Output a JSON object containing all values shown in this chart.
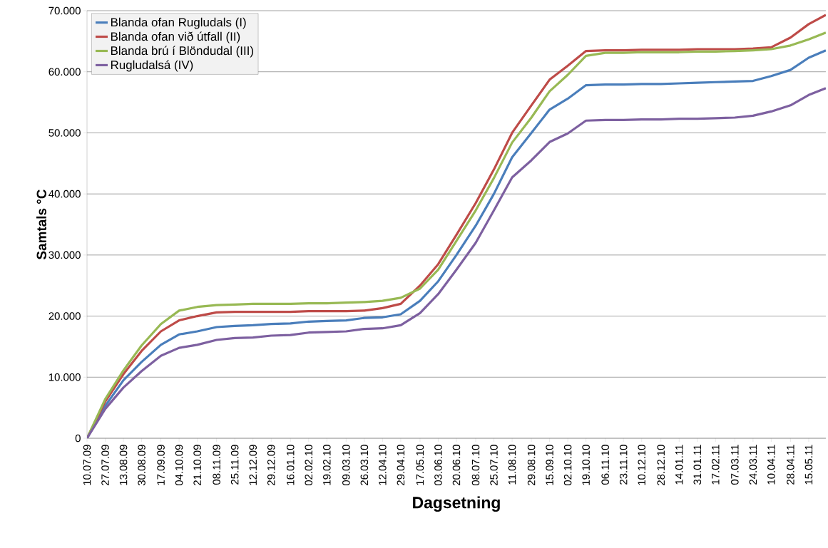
{
  "chart_data": {
    "type": "line",
    "xlabel": "Dagsetning",
    "ylabel": "Samtals °C",
    "x": [
      "2009-07-10",
      "2009-07-27",
      "2009-08-13",
      "2009-08-30",
      "2009-09-17",
      "2009-10-04",
      "2009-10-21",
      "2009-11-08",
      "2009-11-25",
      "2009-12-12",
      "2009-12-29",
      "2010-01-16",
      "2010-02-02",
      "2010-02-19",
      "2010-03-09",
      "2010-03-26",
      "2010-04-12",
      "2010-04-29",
      "2010-05-17",
      "2010-06-03",
      "2010-06-20",
      "2010-07-08",
      "2010-07-25",
      "2010-08-11",
      "2010-08-29",
      "2010-09-15",
      "2010-10-02",
      "2010-10-19",
      "2010-11-06",
      "2010-11-23",
      "2010-12-10",
      "2010-12-28",
      "2011-01-14",
      "2011-01-31",
      "2011-02-17",
      "2011-03-07",
      "2011-03-24",
      "2011-04-10",
      "2011-04-28",
      "2011-05-15",
      "2011-05-31"
    ],
    "series": [
      {
        "name": "Blanda ofan Rugludals (I)",
        "color": "#4a7ebb",
        "values": [
          0,
          5300,
          9500,
          12500,
          15300,
          17000,
          17500,
          18200,
          18400,
          18500,
          18700,
          18800,
          19100,
          19200,
          19300,
          19700,
          19800,
          20300,
          22500,
          25700,
          30000,
          34800,
          40000,
          46000,
          50000,
          53800,
          55600,
          57800,
          57900,
          57900,
          58000,
          58000,
          58100,
          58200,
          58300,
          58400,
          58500,
          59300,
          60300,
          62300,
          63500
        ]
      },
      {
        "name": "Blanda ofan við útfall (II)",
        "color": "#be4b48",
        "values": [
          0,
          6000,
          10500,
          14300,
          17500,
          19300,
          20000,
          20600,
          20700,
          20700,
          20700,
          20700,
          20800,
          20800,
          20800,
          20900,
          21300,
          22000,
          25000,
          28500,
          33300,
          38500,
          44000,
          50000,
          54500,
          58700,
          61000,
          63400,
          63500,
          63500,
          63600,
          63600,
          63600,
          63700,
          63700,
          63700,
          63800,
          64000,
          65600,
          67800,
          69300
        ]
      },
      {
        "name": "Blanda brú í Blöndudal (III)",
        "color": "#98b954",
        "values": [
          0,
          6400,
          11100,
          15200,
          18700,
          20900,
          21500,
          21800,
          21900,
          22000,
          22000,
          22000,
          22100,
          22100,
          22200,
          22300,
          22500,
          23000,
          24500,
          27600,
          32300,
          37300,
          42600,
          48400,
          52500,
          56800,
          59500,
          62600,
          63100,
          63100,
          63200,
          63200,
          63200,
          63300,
          63300,
          63400,
          63500,
          63700,
          64300,
          65300,
          66400
        ]
      },
      {
        "name": "Rugludalsá (IV)",
        "color": "#7d60a0",
        "values": [
          0,
          4800,
          8300,
          11000,
          13500,
          14800,
          15300,
          16100,
          16400,
          16500,
          16800,
          16900,
          17300,
          17400,
          17500,
          17900,
          18000,
          18500,
          20500,
          23600,
          27600,
          32000,
          37300,
          42700,
          45500,
          48500,
          49900,
          52000,
          52100,
          52100,
          52200,
          52200,
          52300,
          52300,
          52400,
          52500,
          52800,
          53500,
          54500,
          56200,
          57300
        ]
      }
    ],
    "xlim": [
      "2009-07-10",
      "2011-05-31"
    ],
    "xticks": [
      {
        "value": "2009-07-10",
        "label": "10.07.09"
      },
      {
        "value": "2009-07-27",
        "label": "27.07.09"
      },
      {
        "value": "2009-08-13",
        "label": "13.08.09"
      },
      {
        "value": "2009-08-30",
        "label": "30.08.09"
      },
      {
        "value": "2009-09-17",
        "label": "17.09.09"
      },
      {
        "value": "2009-10-04",
        "label": "04.10.09"
      },
      {
        "value": "2009-10-21",
        "label": "21.10.09"
      },
      {
        "value": "2009-11-08",
        "label": "08.11.09"
      },
      {
        "value": "2009-11-25",
        "label": "25.11.09"
      },
      {
        "value": "2009-12-12",
        "label": "12.12.09"
      },
      {
        "value": "2009-12-29",
        "label": "29.12.09"
      },
      {
        "value": "2010-01-16",
        "label": "16.01.10"
      },
      {
        "value": "2010-02-02",
        "label": "02.02.10"
      },
      {
        "value": "2010-02-19",
        "label": "19.02.10"
      },
      {
        "value": "2010-03-09",
        "label": "09.03.10"
      },
      {
        "value": "2010-03-26",
        "label": "26.03.10"
      },
      {
        "value": "2010-04-12",
        "label": "12.04.10"
      },
      {
        "value": "2010-04-29",
        "label": "29.04.10"
      },
      {
        "value": "2010-05-17",
        "label": "17.05.10"
      },
      {
        "value": "2010-06-03",
        "label": "03.06.10"
      },
      {
        "value": "2010-06-20",
        "label": "20.06.10"
      },
      {
        "value": "2010-07-08",
        "label": "08.07.10"
      },
      {
        "value": "2010-07-25",
        "label": "25.07.10"
      },
      {
        "value": "2010-08-11",
        "label": "11.08.10"
      },
      {
        "value": "2010-08-29",
        "label": "29.08.10"
      },
      {
        "value": "2010-09-15",
        "label": "15.09.10"
      },
      {
        "value": "2010-10-02",
        "label": "02.10.10"
      },
      {
        "value": "2010-10-19",
        "label": "19.10.10"
      },
      {
        "value": "2010-11-06",
        "label": "06.11.10"
      },
      {
        "value": "2010-11-23",
        "label": "23.11.10"
      },
      {
        "value": "2010-12-10",
        "label": "10.12.10"
      },
      {
        "value": "2010-12-28",
        "label": "28.12.10"
      },
      {
        "value": "2011-01-14",
        "label": "14.01.11"
      },
      {
        "value": "2011-01-31",
        "label": "31.01.11"
      },
      {
        "value": "2011-02-17",
        "label": "17.02.11"
      },
      {
        "value": "2011-03-07",
        "label": "07.03.11"
      },
      {
        "value": "2011-03-24",
        "label": "24.03.11"
      },
      {
        "value": "2011-04-10",
        "label": "10.04.11"
      },
      {
        "value": "2011-04-28",
        "label": "28.04.11"
      },
      {
        "value": "2011-05-15",
        "label": "15.05.11"
      }
    ],
    "ylim": [
      0,
      70000
    ],
    "yticks": [
      0,
      {
        "value": 10000,
        "label": "10.000"
      },
      {
        "value": 20000,
        "label": "20.000"
      },
      {
        "value": 30000,
        "label": "30.000"
      },
      {
        "value": 40000,
        "label": "40.000"
      },
      {
        "value": 50000,
        "label": "50.000"
      },
      {
        "value": 60000,
        "label": "60.000"
      },
      {
        "value": 70000,
        "label": "70.000"
      }
    ],
    "grid": "y",
    "legend": "top left",
    "marker": "none",
    "line_style": "solid"
  }
}
